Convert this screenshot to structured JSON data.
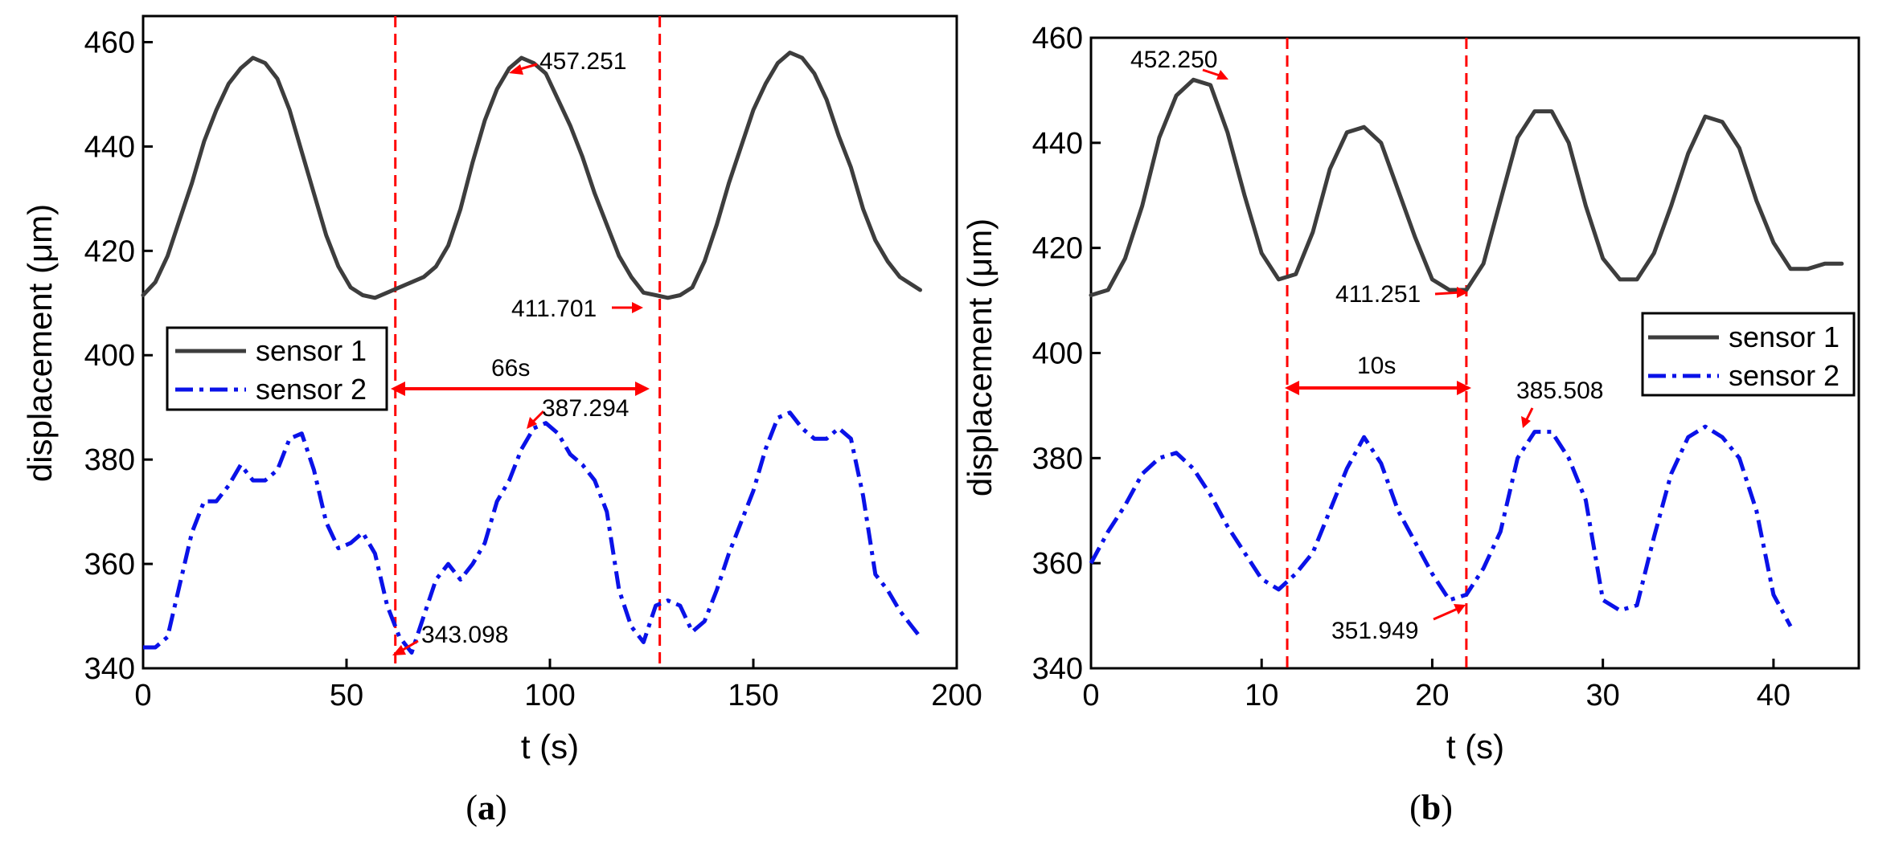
{
  "chart_data": [
    {
      "type": "line",
      "panel_label_open": "(",
      "panel_label_letter": "a",
      "panel_label_close": ")",
      "xlabel": "t (s)",
      "ylabel": "displacement (μm)",
      "xlim": [
        0,
        200
      ],
      "ylim": [
        340,
        465
      ],
      "xticks": [
        0,
        50,
        100,
        150,
        200
      ],
      "yticks": [
        340,
        360,
        380,
        400,
        420,
        440,
        460
      ],
      "legend": {
        "placement": "middle-left",
        "entries": [
          "sensor 1",
          "sensor 2"
        ]
      },
      "series": [
        {
          "name": "sensor 1",
          "color": "#3d3d3d",
          "style": "solid",
          "x": [
            0,
            3,
            6,
            9,
            12,
            15,
            18,
            21,
            24,
            27,
            30,
            33,
            36,
            39,
            42,
            45,
            48,
            51,
            54,
            57,
            60,
            63,
            66,
            69,
            72,
            75,
            78,
            81,
            84,
            87,
            90,
            93,
            96,
            99,
            102,
            105,
            108,
            111,
            114,
            117,
            120,
            123,
            126,
            129,
            132,
            135,
            138,
            141,
            144,
            147,
            150,
            153,
            156,
            159,
            162,
            165,
            168,
            171,
            174,
            177,
            180,
            183,
            186,
            189,
            191
          ],
          "y": [
            411.5,
            414,
            419,
            426,
            433,
            441,
            447,
            452,
            455,
            457,
            456,
            453,
            447,
            439,
            431,
            423,
            417,
            413,
            411.5,
            411,
            412,
            413,
            414,
            415,
            417,
            421,
            428,
            437,
            445,
            451,
            455,
            457,
            456,
            454,
            449,
            444,
            438,
            431,
            425,
            419,
            415,
            412,
            411.5,
            411,
            411.5,
            413,
            418,
            425,
            433,
            440,
            447,
            452,
            456,
            458,
            457,
            454,
            449,
            442,
            436,
            428,
            422,
            418,
            415,
            413.5,
            412.5
          ]
        },
        {
          "name": "sensor 2",
          "color": "#0a12e8",
          "style": "dashdot",
          "x": [
            0,
            3,
            6,
            9,
            12,
            15,
            18,
            21,
            24,
            27,
            30,
            33,
            36,
            39,
            42,
            45,
            48,
            51,
            54,
            57,
            60,
            63,
            66,
            69,
            72,
            75,
            78,
            81,
            84,
            87,
            90,
            93,
            96,
            99,
            102,
            105,
            108,
            111,
            114,
            117,
            120,
            123,
            126,
            129,
            132,
            135,
            138,
            141,
            144,
            147,
            150,
            153,
            156,
            159,
            162,
            165,
            168,
            171,
            174,
            177,
            180,
            183,
            186,
            189,
            191
          ],
          "y": [
            344,
            344,
            346,
            356,
            366,
            372,
            372,
            375,
            379,
            376,
            376,
            378,
            384,
            385,
            378,
            368,
            363,
            364,
            366,
            362,
            352,
            346,
            343,
            350,
            357,
            360,
            357,
            360,
            364,
            372,
            376,
            382,
            386,
            387,
            385,
            381,
            379,
            376,
            370,
            355,
            348,
            345,
            352,
            353,
            352,
            347,
            349,
            355,
            362,
            368,
            374,
            382,
            388,
            389,
            386,
            384,
            384,
            386,
            384,
            373,
            358,
            355,
            351,
            348,
            346
          ]
        }
      ],
      "annotations": [
        {
          "text": "457.251"
        },
        {
          "text": "411.701"
        },
        {
          "text": "387.294"
        },
        {
          "text": "343.098"
        },
        {
          "text": "66s"
        }
      ],
      "vlines": [
        62,
        127
      ]
    },
    {
      "type": "line",
      "panel_label_open": "(",
      "panel_label_letter": "b",
      "panel_label_close": ")",
      "xlabel": "t (s)",
      "ylabel": "displacement (μm)",
      "xlim": [
        0,
        45
      ],
      "ylim": [
        340,
        460
      ],
      "xticks": [
        0,
        10,
        20,
        30,
        40
      ],
      "yticks": [
        340,
        360,
        380,
        400,
        420,
        440,
        460
      ],
      "legend": {
        "placement": "middle-right",
        "entries": [
          "sensor 1",
          "sensor 2"
        ]
      },
      "series": [
        {
          "name": "sensor 1",
          "color": "#3d3d3d",
          "style": "solid",
          "x": [
            0,
            1,
            2,
            3,
            4,
            5,
            6,
            7,
            8,
            9,
            10,
            11,
            12,
            13,
            14,
            15,
            16,
            17,
            18,
            19,
            20,
            21,
            22,
            23,
            24,
            25,
            26,
            27,
            28,
            29,
            30,
            31,
            32,
            33,
            34,
            35,
            36,
            37,
            38,
            39,
            40,
            41,
            42,
            43,
            44
          ],
          "y": [
            411,
            412,
            418,
            428,
            441,
            449,
            452,
            451,
            442,
            430,
            419,
            414,
            415,
            423,
            435,
            442,
            443,
            440,
            431,
            422,
            414,
            412,
            412,
            417,
            429,
            441,
            446,
            446,
            440,
            428,
            418,
            414,
            414,
            419,
            428,
            438,
            445,
            444,
            439,
            429,
            421,
            416,
            416,
            417,
            417
          ]
        },
        {
          "name": "sensor 2",
          "color": "#0a12e8",
          "style": "dashdot",
          "x": [
            0,
            1,
            2,
            3,
            4,
            5,
            6,
            7,
            8,
            9,
            10,
            11,
            12,
            13,
            14,
            15,
            16,
            17,
            18,
            19,
            20,
            21,
            22,
            23,
            24,
            25,
            26,
            27,
            28,
            29,
            30,
            31,
            32,
            33,
            34,
            35,
            36,
            37,
            38,
            39,
            40,
            41
          ],
          "y": [
            360,
            366,
            371,
            377,
            380,
            381,
            378,
            373,
            367,
            362,
            357,
            355,
            358,
            362,
            370,
            378,
            384,
            379,
            370,
            364,
            358,
            353,
            354,
            359,
            366,
            380,
            385,
            385,
            380,
            372,
            353,
            351,
            352,
            365,
            377,
            384,
            386,
            384,
            380,
            370,
            354,
            348
          ]
        }
      ],
      "annotations": [
        {
          "text": "452.250"
        },
        {
          "text": "411.251"
        },
        {
          "text": "385.508"
        },
        {
          "text": "351.949"
        },
        {
          "text": "10s"
        }
      ],
      "vlines": [
        11.5,
        22
      ]
    }
  ]
}
